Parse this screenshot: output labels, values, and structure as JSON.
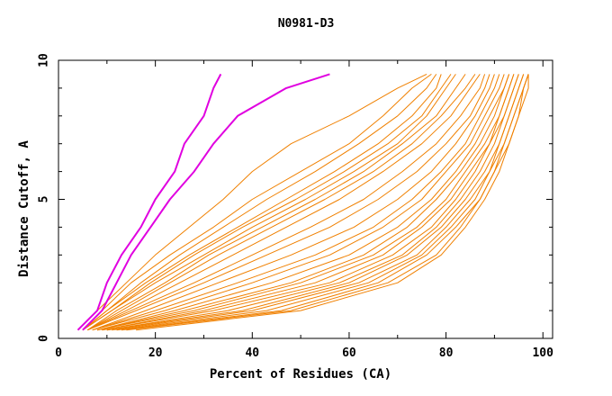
{
  "chart_data": {
    "type": "line",
    "title": "N0981-D3",
    "xlabel": "Percent of Residues (CA)",
    "ylabel": "Distance Cutoff, A",
    "xlim": [
      0,
      102
    ],
    "ylim": [
      0,
      10
    ],
    "xticks": [
      0,
      20,
      40,
      60,
      80,
      100
    ],
    "yticks": [
      0,
      5,
      10
    ],
    "grid": false,
    "colors": {
      "highlight": "#e000e0",
      "other": "#f08000"
    },
    "y_levels": [
      0.3,
      1,
      2,
      3,
      4,
      5,
      6,
      7,
      8,
      9,
      9.5
    ],
    "series": [
      {
        "group": "highlight",
        "x": [
          4,
          8,
          10,
          13,
          17,
          20,
          24,
          26,
          30,
          32,
          33.5
        ]
      },
      {
        "group": "highlight",
        "x": [
          5,
          9,
          12,
          15,
          19,
          23,
          28,
          32,
          37,
          47,
          56
        ]
      },
      {
        "group": "other",
        "x": [
          4,
          8,
          14,
          20,
          27,
          34,
          40,
          48,
          60,
          70,
          76
        ]
      },
      {
        "group": "other",
        "x": [
          5,
          9,
          15,
          23,
          32,
          40,
          50,
          60,
          67,
          73,
          77
        ]
      },
      {
        "group": "other",
        "x": [
          5,
          10,
          17,
          25,
          34,
          43,
          53,
          62,
          70,
          76,
          78
        ]
      },
      {
        "group": "other",
        "x": [
          5,
          10,
          18,
          27,
          37,
          47,
          57,
          66,
          73,
          78,
          79
        ]
      },
      {
        "group": "other",
        "x": [
          5,
          11,
          19,
          28,
          38,
          49,
          59,
          68,
          75,
          79,
          81
        ]
      },
      {
        "group": "other",
        "x": [
          5,
          11,
          20,
          30,
          40,
          51,
          61,
          70,
          76,
          80,
          82
        ]
      },
      {
        "group": "other",
        "x": [
          6,
          12,
          22,
          31,
          42,
          53,
          63,
          71,
          78,
          82,
          84
        ]
      },
      {
        "group": "other",
        "x": [
          6,
          13,
          23,
          33,
          44,
          55,
          65,
          73,
          79,
          84,
          86
        ]
      },
      {
        "group": "other",
        "x": [
          6,
          14,
          25,
          36,
          47,
          58,
          67,
          75,
          81,
          85,
          87
        ]
      },
      {
        "group": "other",
        "x": [
          6,
          15,
          28,
          40,
          52,
          63,
          71,
          78,
          83,
          87,
          88
        ]
      },
      {
        "group": "other",
        "x": [
          6,
          16,
          30,
          43,
          56,
          66,
          74,
          80,
          85,
          88,
          89
        ]
      },
      {
        "group": "other",
        "x": [
          7,
          18,
          33,
          48,
          61,
          70,
          77,
          82,
          86,
          89,
          90
        ]
      },
      {
        "group": "other",
        "x": [
          7,
          20,
          37,
          53,
          65,
          73,
          79,
          84,
          87,
          90,
          91
        ]
      },
      {
        "group": "other",
        "x": [
          7,
          22,
          40,
          56,
          67,
          75,
          80,
          85,
          88,
          91,
          92
        ]
      },
      {
        "group": "other",
        "x": [
          8,
          24,
          44,
          60,
          70,
          77,
          82,
          86,
          89,
          92,
          93
        ]
      },
      {
        "group": "other",
        "x": [
          8,
          26,
          48,
          63,
          72,
          78,
          83,
          87,
          90,
          92,
          93
        ]
      },
      {
        "group": "other",
        "x": [
          8,
          28,
          50,
          65,
          74,
          80,
          84,
          88,
          91,
          93,
          94
        ]
      },
      {
        "group": "other",
        "x": [
          9,
          30,
          53,
          67,
          75,
          81,
          85,
          89,
          91,
          93,
          94
        ]
      },
      {
        "group": "other",
        "x": [
          9,
          32,
          56,
          69,
          77,
          82,
          86,
          89,
          92,
          94,
          95
        ]
      },
      {
        "group": "other",
        "x": [
          10,
          35,
          58,
          71,
          78,
          83,
          87,
          90,
          92,
          94,
          95
        ]
      },
      {
        "group": "other",
        "x": [
          10,
          38,
          60,
          72,
          79,
          84,
          88,
          91,
          93,
          95,
          96
        ]
      },
      {
        "group": "other",
        "x": [
          11,
          40,
          62,
          74,
          80,
          85,
          89,
          91,
          93,
          95,
          96
        ]
      },
      {
        "group": "other",
        "x": [
          12,
          43,
          64,
          75,
          81,
          86,
          89,
          92,
          94,
          96,
          97
        ]
      },
      {
        "group": "other",
        "x": [
          13,
          46,
          66,
          76,
          82,
          87,
          90,
          92,
          94,
          96,
          97
        ]
      },
      {
        "group": "other",
        "x": [
          14,
          48,
          68,
          78,
          83,
          87,
          90,
          93,
          95,
          96,
          97
        ]
      },
      {
        "group": "other",
        "x": [
          16,
          50,
          70,
          79,
          84,
          88,
          91,
          93,
          95,
          97,
          97
        ]
      }
    ]
  }
}
